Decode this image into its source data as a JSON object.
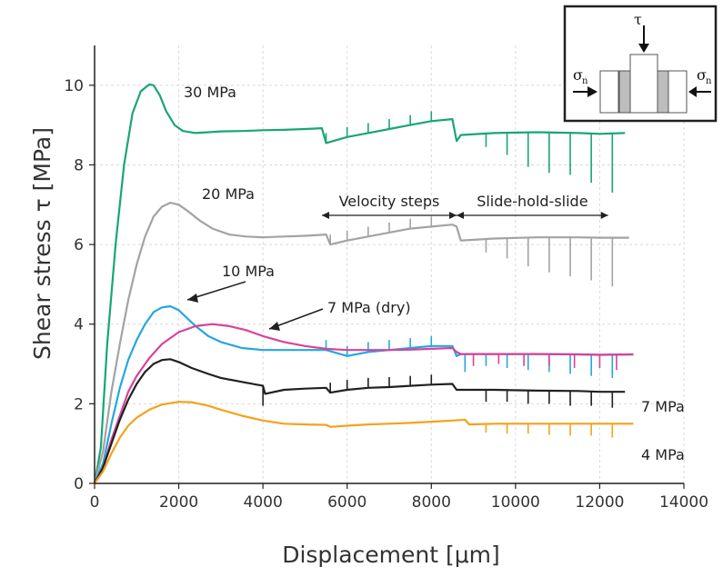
{
  "chart_data": {
    "type": "line",
    "xlabel": "Displacement [μm]",
    "ylabel": "Shear stress τ [MPa]",
    "xlim": [
      0,
      14000
    ],
    "ylim": [
      0,
      11
    ],
    "xticks": [
      0,
      2000,
      4000,
      6000,
      8000,
      10000,
      12000,
      14000
    ],
    "yticks": [
      0,
      2,
      4,
      6,
      8,
      10
    ],
    "grid": true,
    "series": [
      {
        "name": "30 MPa",
        "color": "#1aa572",
        "x": [
          0,
          150,
          300,
          500,
          700,
          900,
          1100,
          1300,
          1400,
          1550,
          1700,
          1900,
          2100,
          2400,
          2700,
          3000,
          3500,
          4000,
          4500,
          5000,
          5400,
          5500,
          6000,
          6500,
          7000,
          7500,
          8000,
          8500,
          8600,
          8700,
          9500,
          10500,
          11500,
          12000,
          12600
        ],
        "y": [
          0,
          0.9,
          3.5,
          6.0,
          8.0,
          9.3,
          9.85,
          10.02,
          10.0,
          9.75,
          9.35,
          9.0,
          8.85,
          8.8,
          8.82,
          8.84,
          8.85,
          8.87,
          8.88,
          8.9,
          8.92,
          8.55,
          8.7,
          8.8,
          8.9,
          9.0,
          9.1,
          9.15,
          8.6,
          8.75,
          8.8,
          8.82,
          8.8,
          8.78,
          8.8
        ],
        "steps": [
          5500,
          6000,
          6500,
          7000,
          7500,
          8000
        ],
        "dips": [
          [
            9300,
            8.45
          ],
          [
            9800,
            8.25
          ],
          [
            10300,
            7.95
          ],
          [
            10800,
            7.8
          ],
          [
            11300,
            7.75
          ],
          [
            11800,
            7.55
          ],
          [
            12300,
            7.3
          ]
        ]
      },
      {
        "name": "20 MPa",
        "color": "#a3a3a3",
        "x": [
          0,
          200,
          400,
          600,
          800,
          1000,
          1200,
          1400,
          1600,
          1800,
          2000,
          2200,
          2500,
          2800,
          3200,
          3600,
          4000,
          4500,
          5000,
          5500,
          5600,
          6000,
          6500,
          7000,
          7500,
          8000,
          8500,
          8600,
          8700,
          9500,
          10500,
          11500,
          12000,
          12700
        ],
        "y": [
          0,
          0.8,
          2.3,
          3.5,
          4.6,
          5.5,
          6.2,
          6.7,
          6.95,
          7.05,
          7.0,
          6.85,
          6.6,
          6.4,
          6.25,
          6.2,
          6.18,
          6.2,
          6.22,
          6.25,
          6.0,
          6.1,
          6.2,
          6.3,
          6.4,
          6.45,
          6.5,
          6.45,
          6.1,
          6.15,
          6.18,
          6.18,
          6.17,
          6.17
        ],
        "steps": [
          5600,
          6000,
          6500,
          7000,
          7500,
          8000
        ],
        "dips": [
          [
            9300,
            5.8
          ],
          [
            9800,
            5.65
          ],
          [
            10300,
            5.45
          ],
          [
            10800,
            5.3
          ],
          [
            11300,
            5.2
          ],
          [
            11800,
            5.1
          ],
          [
            12300,
            4.95
          ]
        ]
      },
      {
        "name": "10 MPa",
        "color": "#25a6df",
        "x": [
          0,
          200,
          400,
          600,
          800,
          1000,
          1200,
          1400,
          1600,
          1800,
          2000,
          2200,
          2400,
          2700,
          3000,
          3500,
          4000,
          4500,
          5000,
          5500,
          6000,
          6500,
          7000,
          7500,
          8000,
          8500,
          8600,
          8700,
          9500,
          10500,
          11500,
          12000,
          12800
        ],
        "y": [
          0,
          0.5,
          1.5,
          2.4,
          3.1,
          3.6,
          4.0,
          4.3,
          4.42,
          4.45,
          4.35,
          4.15,
          3.95,
          3.7,
          3.55,
          3.4,
          3.35,
          3.35,
          3.35,
          3.35,
          3.2,
          3.3,
          3.35,
          3.4,
          3.45,
          3.45,
          3.2,
          3.25,
          3.25,
          3.25,
          3.24,
          3.23,
          3.24
        ],
        "steps": [
          5500,
          6000,
          6500,
          7000,
          7500,
          8000
        ],
        "dips": [
          [
            8800,
            2.8
          ],
          [
            9300,
            2.95
          ],
          [
            9800,
            2.9
          ],
          [
            10300,
            2.85
          ],
          [
            10800,
            2.8
          ],
          [
            11300,
            2.75
          ],
          [
            11800,
            2.7
          ],
          [
            12300,
            2.65
          ]
        ]
      },
      {
        "name": "7 MPa (dry)",
        "color": "#d6439a",
        "x": [
          0,
          200,
          400,
          600,
          800,
          1000,
          1300,
          1600,
          2000,
          2400,
          2800,
          3200,
          3600,
          4000,
          4500,
          5000,
          5500,
          6000,
          6500,
          7000,
          7500,
          8000,
          8500,
          8600,
          8700,
          9500,
          10500,
          11500,
          12000,
          12800
        ],
        "y": [
          0,
          0.4,
          1.1,
          1.7,
          2.3,
          2.7,
          3.15,
          3.5,
          3.8,
          3.95,
          4.0,
          3.95,
          3.85,
          3.7,
          3.55,
          3.45,
          3.38,
          3.35,
          3.35,
          3.35,
          3.36,
          3.38,
          3.4,
          3.3,
          3.25,
          3.25,
          3.25,
          3.24,
          3.23,
          3.24
        ],
        "steps": [],
        "dips": [
          [
            9000,
            2.95
          ],
          [
            9600,
            3.0
          ],
          [
            10200,
            2.95
          ],
          [
            10800,
            2.95
          ],
          [
            11400,
            2.9
          ],
          [
            12000,
            2.9
          ],
          [
            12400,
            2.85
          ]
        ]
      },
      {
        "name": "7 MPa",
        "color": "#231f20",
        "x": [
          0,
          200,
          400,
          600,
          800,
          1000,
          1200,
          1400,
          1600,
          1800,
          2000,
          2300,
          2700,
          3000,
          3500,
          4000,
          4050,
          4500,
          5000,
          5500,
          5600,
          6000,
          6500,
          7000,
          7500,
          8000,
          8500,
          8600,
          8700,
          9500,
          10500,
          11500,
          12000,
          12600
        ],
        "y": [
          0,
          0.4,
          1.0,
          1.6,
          2.1,
          2.5,
          2.8,
          3.0,
          3.1,
          3.12,
          3.05,
          2.9,
          2.75,
          2.65,
          2.55,
          2.45,
          2.25,
          2.35,
          2.38,
          2.4,
          2.28,
          2.35,
          2.4,
          2.42,
          2.45,
          2.48,
          2.5,
          2.35,
          2.35,
          2.35,
          2.33,
          2.32,
          2.3,
          2.3
        ],
        "steps": [
          5600,
          6000,
          6500,
          7000,
          7500,
          8000
        ],
        "dips": [
          [
            4000,
            1.95
          ],
          [
            9300,
            2.05
          ],
          [
            9800,
            2.05
          ],
          [
            10300,
            2.0
          ],
          [
            10800,
            2.0
          ],
          [
            11300,
            1.95
          ],
          [
            11800,
            1.95
          ],
          [
            12300,
            1.9
          ]
        ]
      },
      {
        "name": "4 MPa",
        "color": "#f7a11a",
        "x": [
          0,
          200,
          400,
          600,
          800,
          1000,
          1300,
          1600,
          2000,
          2300,
          2700,
          3000,
          3500,
          4000,
          4500,
          5000,
          5500,
          5600,
          6000,
          6500,
          7000,
          7500,
          8000,
          8500,
          8800,
          8900,
          9500,
          10500,
          11500,
          12000,
          12800
        ],
        "y": [
          0,
          0.3,
          0.75,
          1.15,
          1.45,
          1.65,
          1.85,
          1.98,
          2.05,
          2.04,
          1.95,
          1.85,
          1.7,
          1.58,
          1.5,
          1.48,
          1.47,
          1.42,
          1.45,
          1.48,
          1.5,
          1.52,
          1.55,
          1.58,
          1.6,
          1.48,
          1.5,
          1.5,
          1.5,
          1.5,
          1.5
        ],
        "steps": [],
        "dips": [
          [
            9300,
            1.28
          ],
          [
            9800,
            1.25
          ],
          [
            10300,
            1.25
          ],
          [
            10800,
            1.22
          ],
          [
            11300,
            1.2
          ],
          [
            11800,
            1.2
          ],
          [
            12300,
            1.15
          ]
        ]
      }
    ],
    "annotations": {
      "velocity_steps": "Velocity steps",
      "slide_hold_slide": "Slide-hold-slide",
      "velocity_range": [
        5400,
        8600
      ],
      "shs_range": [
        8600,
        12200
      ],
      "bracket_y": 6.7
    },
    "inset": {
      "tau": "τ",
      "sigma": "σ",
      "sub": "n"
    }
  }
}
